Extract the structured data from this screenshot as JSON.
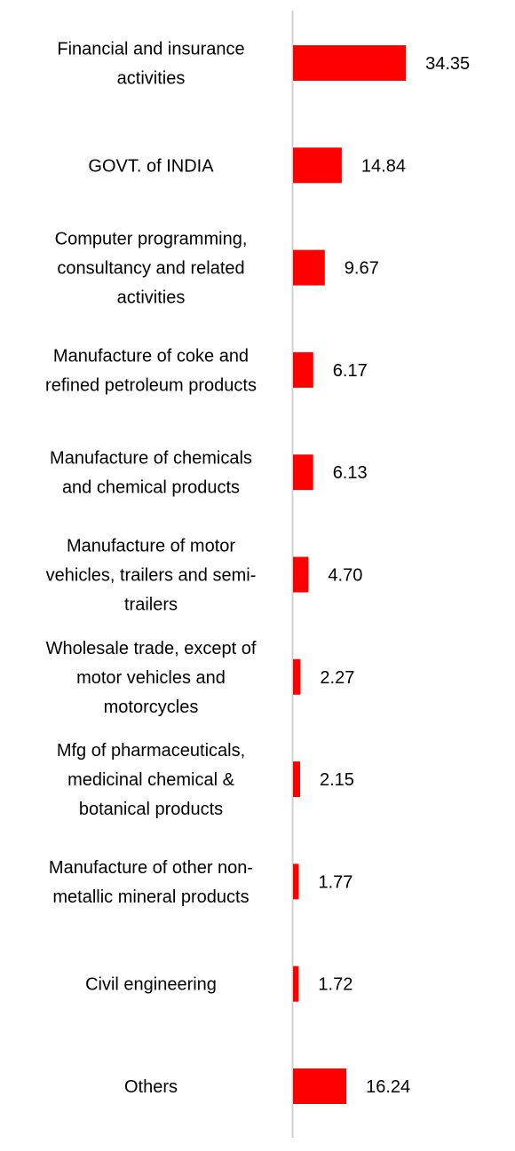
{
  "chart_data": {
    "type": "bar",
    "orientation": "horizontal",
    "categories": [
      [
        "Financial and insurance",
        "activities"
      ],
      [
        "GOVT. of INDIA"
      ],
      [
        "Computer programming,",
        "consultancy and related",
        "activities"
      ],
      [
        "Manufacture of coke and",
        "refined petroleum products"
      ],
      [
        "Manufacture of chemicals",
        "and chemical products"
      ],
      [
        "Manufacture of motor",
        "vehicles, trailers and semi-",
        "trailers"
      ],
      [
        "Wholesale trade, except of",
        "motor vehicles and",
        "motorcycles"
      ],
      [
        "Mfg of pharmaceuticals,",
        "medicinal chemical &",
        "botanical products"
      ],
      [
        "Manufacture of other non-",
        "metallic mineral products"
      ],
      [
        "Civil engineering"
      ],
      [
        "Others"
      ]
    ],
    "values": [
      34.35,
      14.84,
      9.67,
      6.17,
      6.13,
      4.7,
      2.27,
      2.15,
      1.77,
      1.72,
      16.24
    ],
    "value_labels": [
      "34.35",
      "14.84",
      "9.67",
      "6.17",
      "6.13",
      "4.70",
      "2.27",
      "2.15",
      "1.77",
      "1.72",
      "16.24"
    ],
    "bar_color": "#ff0000",
    "axis_color": "#d0d0d0",
    "title": "",
    "xlabel": "",
    "ylabel": "",
    "grid": false,
    "legend": "none"
  }
}
